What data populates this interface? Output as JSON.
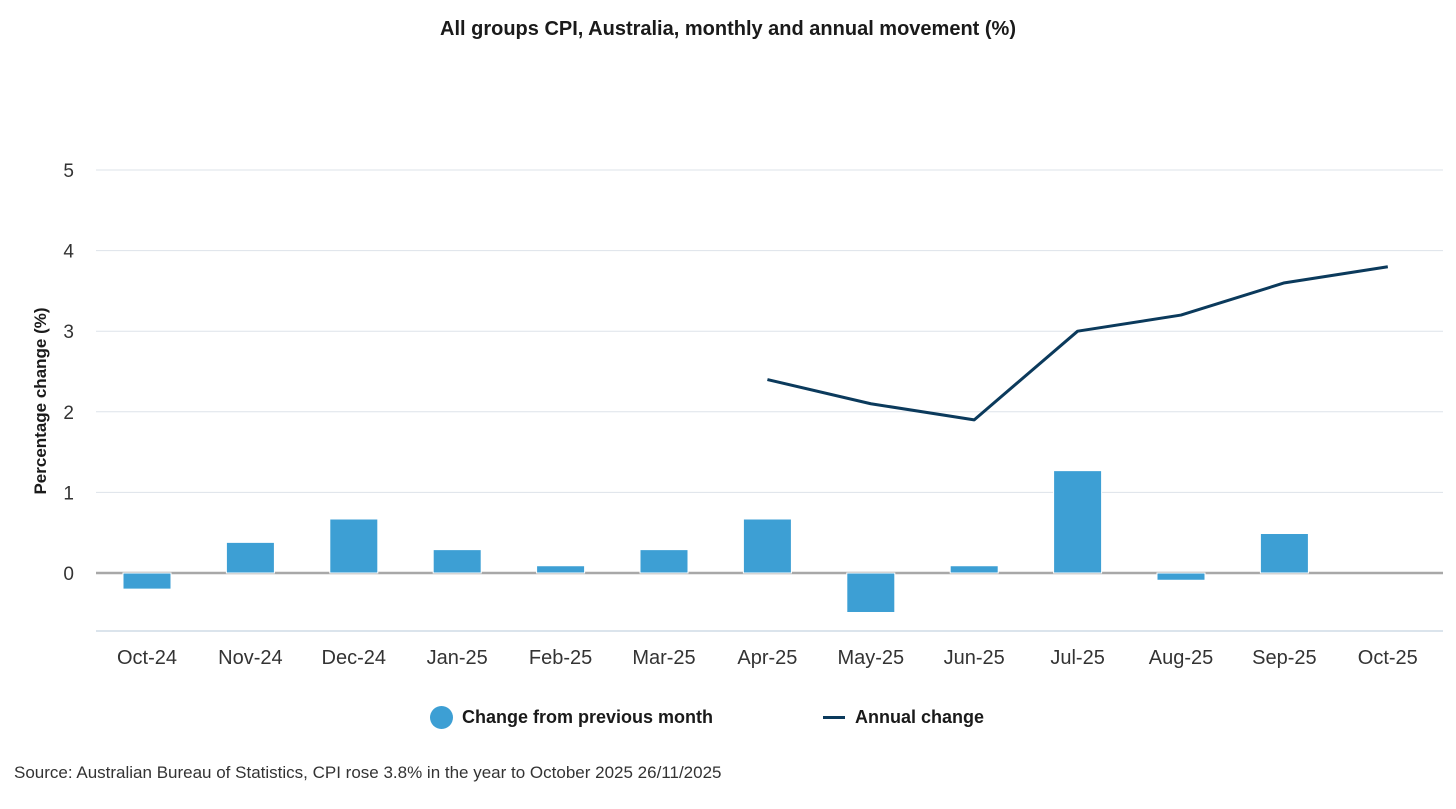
{
  "chart_data": {
    "type": "bar+line",
    "title": "All groups CPI, Australia, monthly and annual movement (%)",
    "xlabel": "",
    "ylabel": "Percentage change (%)",
    "ylim": [
      -0.7,
      5
    ],
    "yticks": [
      0,
      1,
      2,
      3,
      4,
      5
    ],
    "grid": true,
    "categories": [
      "Oct-24",
      "Nov-24",
      "Dec-24",
      "Jan-25",
      "Feb-25",
      "Mar-25",
      "Apr-25",
      "May-25",
      "Jun-25",
      "Jul-25",
      "Aug-25",
      "Sep-25",
      "Oct-25"
    ],
    "series": [
      {
        "name": "Change from previous month",
        "type": "bar",
        "color": "#3d9fd4",
        "values": [
          -0.2,
          0.38,
          0.67,
          0.29,
          0.09,
          0.29,
          0.67,
          -0.49,
          0.09,
          1.27,
          -0.09,
          0.49,
          0.0
        ]
      },
      {
        "name": "Annual change",
        "type": "line",
        "color": "#0b3a5c",
        "values": [
          null,
          null,
          null,
          null,
          null,
          null,
          2.4,
          2.1,
          1.9,
          3.0,
          3.2,
          3.6,
          3.8
        ]
      }
    ],
    "legend": "bottom-center"
  },
  "legend": {
    "monthly_label": "Change from previous month",
    "annual_label": "Annual change",
    "monthly_color": "#3d9fd4",
    "annual_color": "#0b3a5c"
  },
  "source": "Source: Australian Bureau of Statistics, CPI rose 3.8% in the year to October 2025 26/11/2025"
}
